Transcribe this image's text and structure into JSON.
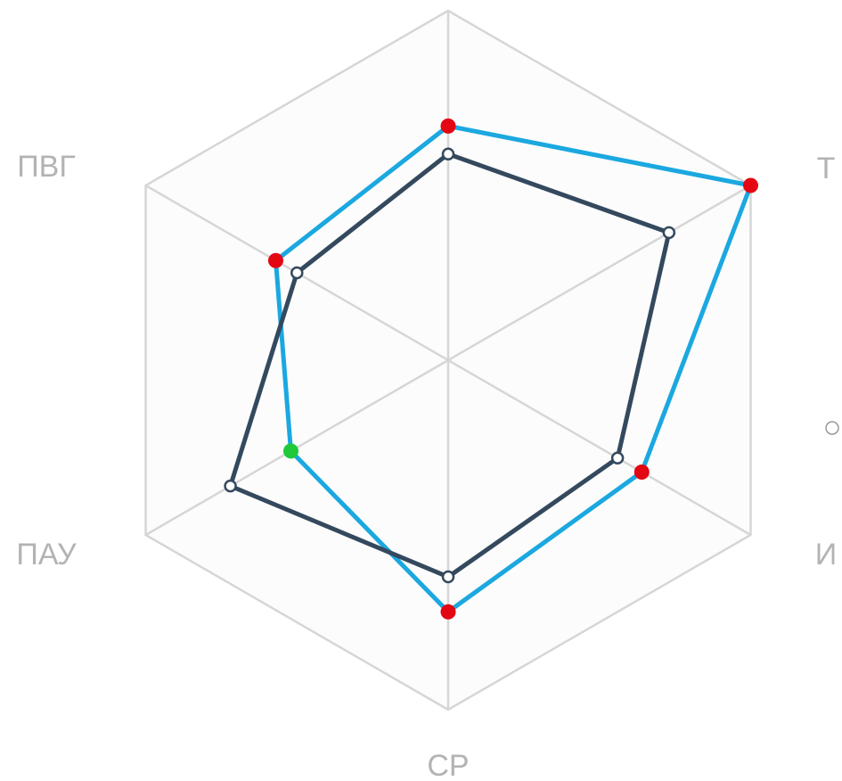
{
  "chart_data": {
    "type": "radar",
    "axes": [
      "",
      "Т",
      "И",
      "СР",
      "ПАУ",
      "ПВГ"
    ],
    "range": [
      0,
      1
    ],
    "grid_levels": [
      1
    ],
    "grid": true,
    "series": [
      {
        "values": [
          0.67,
          1.0,
          0.64,
          0.72,
          0.52,
          0.57
        ],
        "color": "#1ba8e0",
        "point_colors": [
          "#e30613",
          "#e30613",
          "#e30613",
          "#e30613",
          "#1fc93a",
          "#e30613"
        ]
      },
      {
        "values": [
          0.59,
          0.73,
          0.56,
          0.62,
          0.72,
          0.5
        ],
        "color": "#34495e",
        "point_color": "#ffffff"
      }
    ]
  },
  "legend_marker": {
    "shape": "circle-outline",
    "color": "#999999"
  }
}
